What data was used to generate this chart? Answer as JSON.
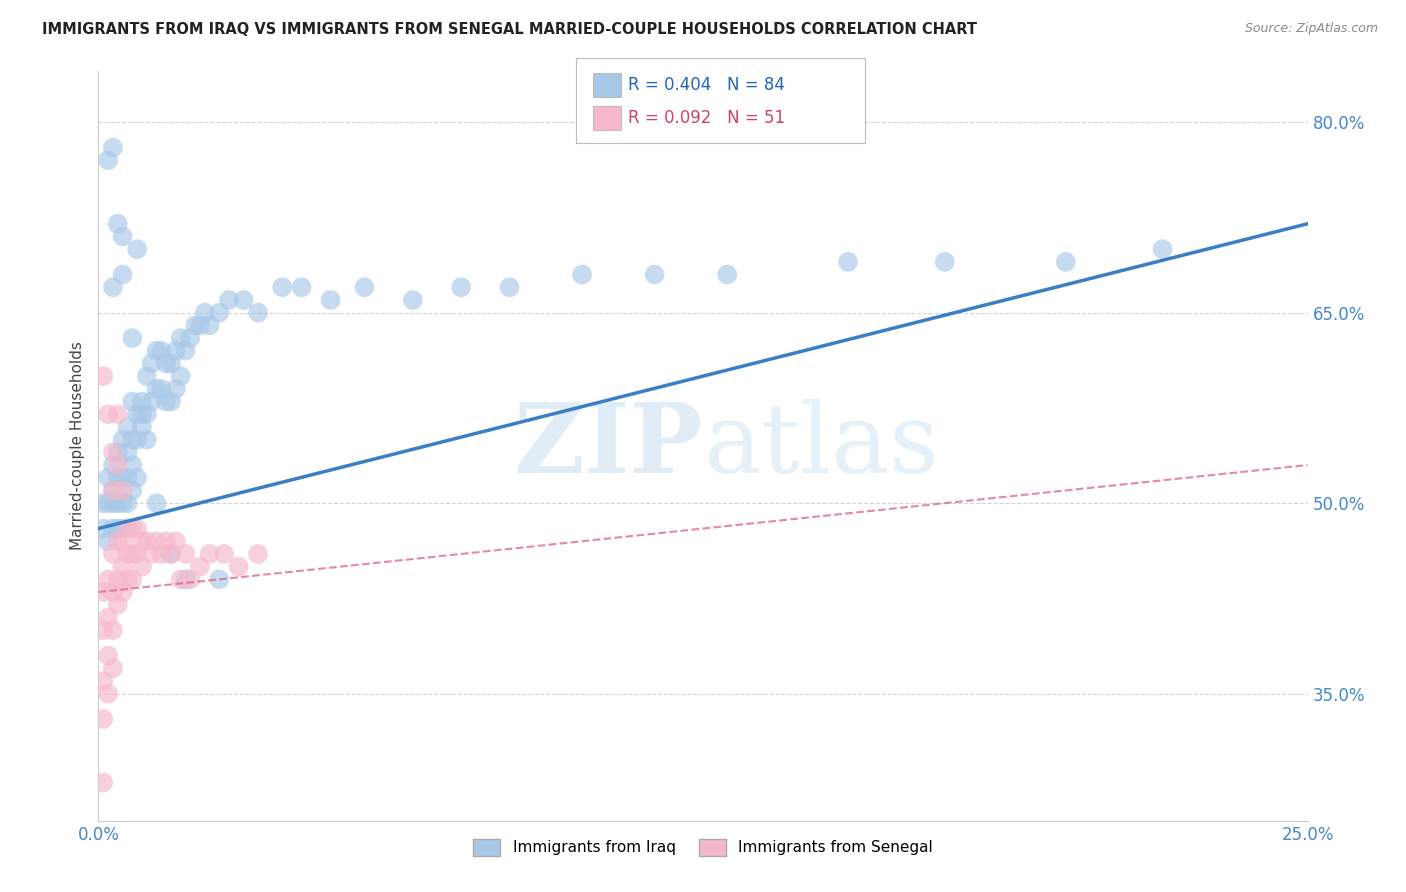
{
  "title": "IMMIGRANTS FROM IRAQ VS IMMIGRANTS FROM SENEGAL MARRIED-COUPLE HOUSEHOLDS CORRELATION CHART",
  "source": "Source: ZipAtlas.com",
  "ylabel": "Married-couple Households",
  "xmin": 0.0,
  "xmax": 0.25,
  "ymin": 0.25,
  "ymax": 0.84,
  "yticks": [
    0.35,
    0.5,
    0.65,
    0.8
  ],
  "ytick_labels": [
    "35.0%",
    "50.0%",
    "65.0%",
    "80.0%"
  ],
  "xtick_labels": [
    "0.0%",
    "25.0%"
  ],
  "xtick_positions": [
    0.0,
    0.25
  ],
  "iraq_R": 0.404,
  "iraq_N": 84,
  "senegal_R": 0.092,
  "senegal_N": 51,
  "iraq_color": "#a8c8e8",
  "iraq_line_color": "#3a7ec4",
  "senegal_color": "#f5b8cc",
  "senegal_line_color": "#e06080",
  "iraq_line_x0": 0.0,
  "iraq_line_y0": 0.48,
  "iraq_line_x1": 0.25,
  "iraq_line_y1": 0.72,
  "senegal_line_x0": 0.0,
  "senegal_line_y0": 0.43,
  "senegal_line_x1": 0.25,
  "senegal_line_y1": 0.53,
  "iraq_scatter_x": [
    0.001,
    0.001,
    0.002,
    0.002,
    0.002,
    0.003,
    0.003,
    0.003,
    0.003,
    0.004,
    0.004,
    0.004,
    0.004,
    0.005,
    0.005,
    0.005,
    0.005,
    0.006,
    0.006,
    0.006,
    0.006,
    0.007,
    0.007,
    0.007,
    0.007,
    0.008,
    0.008,
    0.008,
    0.009,
    0.009,
    0.01,
    0.01,
    0.01,
    0.011,
    0.011,
    0.012,
    0.012,
    0.013,
    0.013,
    0.014,
    0.014,
    0.015,
    0.015,
    0.016,
    0.016,
    0.017,
    0.017,
    0.018,
    0.019,
    0.02,
    0.021,
    0.022,
    0.023,
    0.025,
    0.027,
    0.03,
    0.033,
    0.038,
    0.042,
    0.048,
    0.055,
    0.065,
    0.075,
    0.085,
    0.1,
    0.115,
    0.13,
    0.155,
    0.175,
    0.2,
    0.22,
    0.002,
    0.003,
    0.004,
    0.005,
    0.007,
    0.009,
    0.012,
    0.018,
    0.025,
    0.003,
    0.005,
    0.008,
    0.015
  ],
  "iraq_scatter_y": [
    0.48,
    0.5,
    0.5,
    0.52,
    0.47,
    0.51,
    0.53,
    0.48,
    0.5,
    0.52,
    0.54,
    0.5,
    0.48,
    0.55,
    0.52,
    0.5,
    0.48,
    0.56,
    0.54,
    0.52,
    0.5,
    0.58,
    0.55,
    0.53,
    0.51,
    0.57,
    0.55,
    0.52,
    0.58,
    0.56,
    0.6,
    0.57,
    0.55,
    0.61,
    0.58,
    0.62,
    0.59,
    0.62,
    0.59,
    0.61,
    0.58,
    0.61,
    0.58,
    0.62,
    0.59,
    0.63,
    0.6,
    0.62,
    0.63,
    0.64,
    0.64,
    0.65,
    0.64,
    0.65,
    0.66,
    0.66,
    0.65,
    0.67,
    0.67,
    0.66,
    0.67,
    0.66,
    0.67,
    0.67,
    0.68,
    0.68,
    0.68,
    0.69,
    0.69,
    0.69,
    0.7,
    0.77,
    0.78,
    0.72,
    0.68,
    0.63,
    0.57,
    0.5,
    0.44,
    0.44,
    0.67,
    0.71,
    0.7,
    0.46
  ],
  "senegal_scatter_x": [
    0.001,
    0.001,
    0.001,
    0.001,
    0.002,
    0.002,
    0.002,
    0.002,
    0.003,
    0.003,
    0.003,
    0.003,
    0.004,
    0.004,
    0.004,
    0.005,
    0.005,
    0.005,
    0.006,
    0.006,
    0.006,
    0.007,
    0.007,
    0.007,
    0.008,
    0.008,
    0.009,
    0.009,
    0.01,
    0.011,
    0.012,
    0.013,
    0.014,
    0.015,
    0.016,
    0.017,
    0.018,
    0.019,
    0.021,
    0.023,
    0.026,
    0.029,
    0.033,
    0.001,
    0.002,
    0.003,
    0.003,
    0.004,
    0.004,
    0.005,
    0.001
  ],
  "senegal_scatter_y": [
    0.43,
    0.4,
    0.36,
    0.33,
    0.44,
    0.41,
    0.38,
    0.35,
    0.46,
    0.43,
    0.4,
    0.37,
    0.47,
    0.44,
    0.42,
    0.47,
    0.45,
    0.43,
    0.48,
    0.46,
    0.44,
    0.48,
    0.46,
    0.44,
    0.48,
    0.46,
    0.47,
    0.45,
    0.47,
    0.46,
    0.47,
    0.46,
    0.47,
    0.46,
    0.47,
    0.44,
    0.46,
    0.44,
    0.45,
    0.46,
    0.46,
    0.45,
    0.46,
    0.6,
    0.57,
    0.54,
    0.51,
    0.57,
    0.53,
    0.51,
    0.28
  ],
  "watermark_zip": "ZIP",
  "watermark_atlas": "atlas",
  "background_color": "#ffffff",
  "grid_color": "#d0d0d0"
}
